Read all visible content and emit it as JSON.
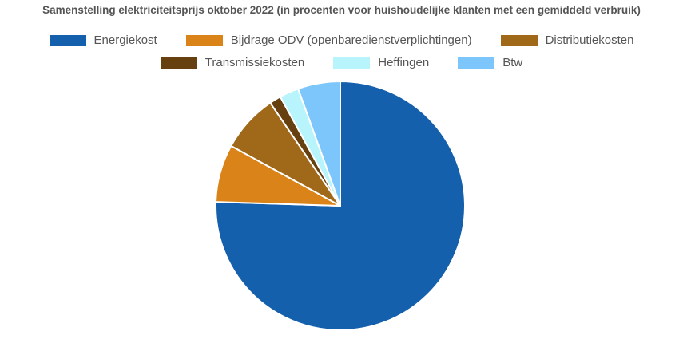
{
  "chart_data": {
    "type": "pie",
    "title": "Samenstelling elektriciteitsprijs oktober 2022 (in procenten voor huishoudelijke klanten met een gemiddeld verbruik)",
    "unit": "%",
    "slices": [
      {
        "name": "Energiekost",
        "value": 75.5,
        "color": "#1560AC"
      },
      {
        "name": "Bijdrage ODV (openbaredienstverplichtingen)",
        "value": 7.5,
        "color": "#D98318"
      },
      {
        "name": "Distributiekosten",
        "value": 7.5,
        "color": "#A0691A"
      },
      {
        "name": "Transmissiekosten",
        "value": 1.5,
        "color": "#66400F"
      },
      {
        "name": "Heffingen",
        "value": 2.5,
        "color": "#B7F4FB"
      },
      {
        "name": "Btw",
        "value": 5.5,
        "color": "#7DC6FB"
      }
    ],
    "legend_position": "top"
  }
}
